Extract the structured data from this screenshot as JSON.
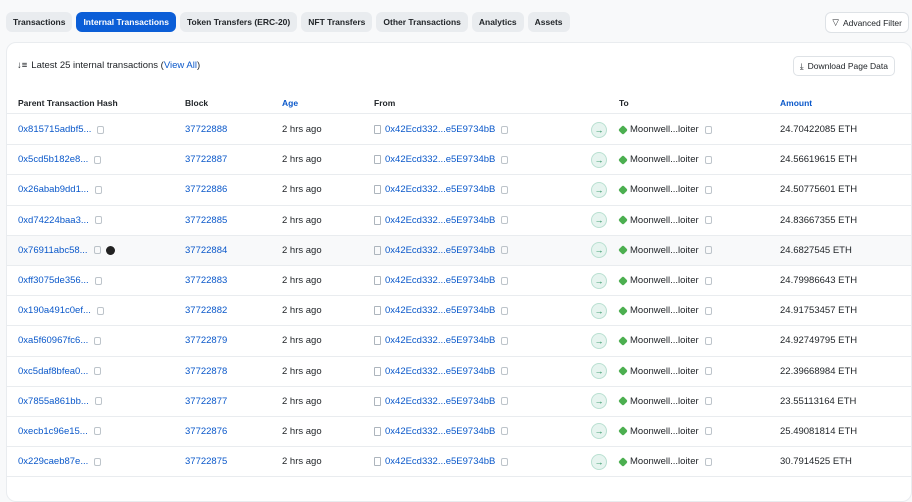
{
  "tabs": [
    "Transactions",
    "Internal Transactions",
    "Token Transfers (ERC-20)",
    "NFT Transfers",
    "Other Transactions",
    "Analytics",
    "Assets"
  ],
  "active_tab": "Internal Transactions",
  "advanced_filter": "Advanced Filter",
  "summary": {
    "prefix": "Latest 25 internal transactions (",
    "link": "View All",
    "suffix": ")"
  },
  "download": "Download Page Data",
  "columns": [
    "Parent Transaction Hash",
    "Block",
    "Age",
    "From",
    "To",
    "Amount"
  ],
  "colors": {
    "accent": "#0b5ed7",
    "link": "#0a58ca"
  },
  "rows": [
    {
      "hash": "0x815715adbf5...",
      "block": "37722888",
      "age": "2 hrs ago",
      "from": "0x42Ecd332...e5E9734bB",
      "to": "Moonwell...loiter",
      "amount": "24.70422085 ETH"
    },
    {
      "hash": "0x5cd5b182e8...",
      "block": "37722887",
      "age": "2 hrs ago",
      "from": "0x42Ecd332...e5E9734bB",
      "to": "Moonwell...loiter",
      "amount": "24.56619615 ETH"
    },
    {
      "hash": "0x26abab9dd1...",
      "block": "37722886",
      "age": "2 hrs ago",
      "from": "0x42Ecd332...e5E9734bB",
      "to": "Moonwell...loiter",
      "amount": "24.50775601 ETH"
    },
    {
      "hash": "0xd74224baa3...",
      "block": "37722885",
      "age": "2 hrs ago",
      "from": "0x42Ecd332...e5E9734bB",
      "to": "Moonwell...loiter",
      "amount": "24.83667355 ETH"
    },
    {
      "hash": "0x76911abc58...",
      "block": "37722884",
      "age": "2 hrs ago",
      "from": "0x42Ecd332...e5E9734bB",
      "to": "Moonwell...loiter",
      "amount": "24.6827545 ETH",
      "badge": true
    },
    {
      "hash": "0xff3075de356...",
      "block": "37722883",
      "age": "2 hrs ago",
      "from": "0x42Ecd332...e5E9734bB",
      "to": "Moonwell...loiter",
      "amount": "24.79986643 ETH"
    },
    {
      "hash": "0x190a491c0ef...",
      "block": "37722882",
      "age": "2 hrs ago",
      "from": "0x42Ecd332...e5E9734bB",
      "to": "Moonwell...loiter",
      "amount": "24.91753457 ETH"
    },
    {
      "hash": "0xa5f60967fc6...",
      "block": "37722879",
      "age": "2 hrs ago",
      "from": "0x42Ecd332...e5E9734bB",
      "to": "Moonwell...loiter",
      "amount": "24.92749795 ETH"
    },
    {
      "hash": "0xc5daf8bfea0...",
      "block": "37722878",
      "age": "2 hrs ago",
      "from": "0x42Ecd332...e5E9734bB",
      "to": "Moonwell...loiter",
      "amount": "22.39668984 ETH"
    },
    {
      "hash": "0x7855a861bb...",
      "block": "37722877",
      "age": "2 hrs ago",
      "from": "0x42Ecd332...e5E9734bB",
      "to": "Moonwell...loiter",
      "amount": "23.55113164 ETH"
    },
    {
      "hash": "0xecb1c96e15...",
      "block": "37722876",
      "age": "2 hrs ago",
      "from": "0x42Ecd332...e5E9734bB",
      "to": "Moonwell...loiter",
      "amount": "25.49081814 ETH"
    },
    {
      "hash": "0x229caeb87e...",
      "block": "37722875",
      "age": "2 hrs ago",
      "from": "0x42Ecd332...e5E9734bB",
      "to": "Moonwell...loiter",
      "amount": "30.7914525 ETH"
    }
  ]
}
